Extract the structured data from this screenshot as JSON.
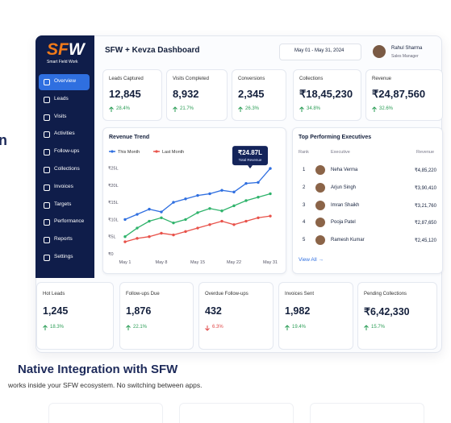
{
  "fragment": "n",
  "brand": {
    "logo_main": "SF",
    "logo_accent": "W",
    "tagline": "Smart Field Work"
  },
  "nav": [
    "Overview",
    "Leads",
    "Visits",
    "Activities",
    "Follow-ups",
    "Collections",
    "Invoices",
    "Targets",
    "Performance",
    "Reports",
    "Settings"
  ],
  "header": {
    "title": "SFW + Kevza Dashboard",
    "date_range": "May 01 - May 31, 2024",
    "user_name": "Rahul Sharma",
    "user_role": "Sales Manager"
  },
  "kpis": [
    {
      "label": "Leads Captured",
      "value": "12,845",
      "change": "28.4%",
      "trend": "up"
    },
    {
      "label": "Visits Completed",
      "value": "8,932",
      "change": "21.7%",
      "trend": "up"
    },
    {
      "label": "Conversions",
      "value": "2,345",
      "change": "26.3%",
      "trend": "up"
    },
    {
      "label": "Collections",
      "value": "₹18,45,230",
      "change": "34.8%",
      "trend": "up"
    },
    {
      "label": "Revenue",
      "value": "₹24,87,560",
      "change": "32.6%",
      "trend": "up"
    }
  ],
  "chart": {
    "type": "line",
    "title": "Revenue Trend",
    "categories": [
      "May 1",
      null,
      null,
      "May 8",
      null,
      null,
      "May 15",
      null,
      null,
      "May 22",
      null,
      null,
      "May 31"
    ],
    "series": [
      {
        "name": "This Month",
        "color": "#2f6fe0",
        "values": [
          10,
          11.5,
          13,
          12.2,
          15,
          16,
          17,
          17.5,
          18.5,
          18,
          20.5,
          20.8,
          24.87
        ],
        "value_labels": [
          null,
          null,
          null,
          null,
          null,
          null,
          null,
          null,
          null,
          null,
          null,
          null,
          "₹24.87L"
        ]
      },
      {
        "color": "#2fb36b",
        "values": [
          5,
          7.5,
          9.5,
          10.5,
          9,
          10,
          12,
          13.2,
          12.5,
          14,
          15.5,
          16.5,
          17.5
        ]
      },
      {
        "name": "Last Month",
        "color": "#e8524a",
        "values": [
          3.5,
          4.5,
          5,
          6,
          5.5,
          6.5,
          7.5,
          8.5,
          9.5,
          8.5,
          9.5,
          10.5,
          11
        ]
      }
    ],
    "annotation": "Total Revenue",
    "ylim": [
      0,
      27
    ],
    "yticks": [
      {
        "value": 0,
        "label": "₹0"
      },
      {
        "value": 5,
        "label": "₹5L"
      },
      {
        "value": 10,
        "label": "₹10L"
      },
      {
        "value": 15,
        "label": "₹15L"
      },
      {
        "value": 20,
        "label": "₹20L"
      },
      {
        "value": 25,
        "label": "₹25L"
      }
    ]
  },
  "performers": {
    "title": "Top Performing Executives",
    "headers": [
      "Rank",
      "Executive",
      "Revenue"
    ],
    "rows": [
      [
        "1",
        "Neha Verma",
        "₹4,85,220"
      ],
      [
        "2",
        "Arjun Singh",
        "₹3,90,410"
      ],
      [
        "3",
        "Imran Shaikh",
        "₹3,21,760"
      ],
      [
        "4",
        "Pooja Patel",
        "₹2,87,650"
      ],
      [
        "5",
        "Ramesh Kumar",
        "₹2,45,120"
      ]
    ],
    "link": "View All →"
  },
  "kpis2": [
    {
      "label": "Hot Leads",
      "value": "1,245",
      "change": "18.3%",
      "trend": "up"
    },
    {
      "label": "Follow-ups Due",
      "value": "1,876",
      "change": "22.1%",
      "trend": "up"
    },
    {
      "label": "Overdue Follow-ups",
      "value": "432",
      "change": "6.3%",
      "trend": "down"
    },
    {
      "label": "Invoices Sent",
      "value": "1,982",
      "change": "19.4%",
      "trend": "up"
    },
    {
      "label": "Pending Collections",
      "value": "₹6,42,330",
      "change": "15.7%",
      "trend": "up"
    }
  ],
  "footer": {
    "title": "Native Integration with SFW",
    "subtitle": "works inside your SFW ecosystem. No switching between apps."
  }
}
